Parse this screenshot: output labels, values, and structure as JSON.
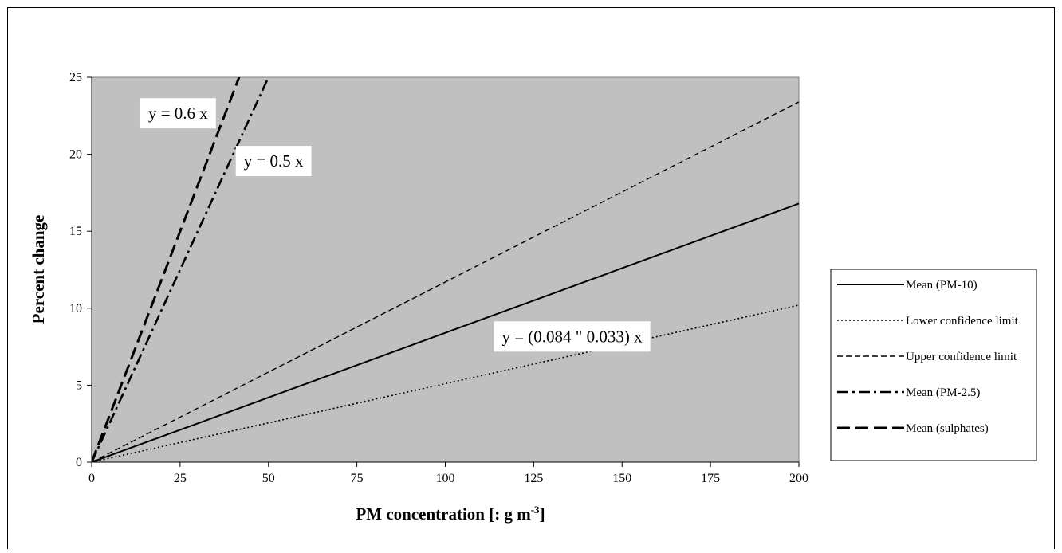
{
  "chart_data": {
    "type": "line",
    "xlabel": "PM concentration [: g m",
    "xlabel_sup": "-3",
    "xlabel_tail": "]",
    "ylabel": "Percent change",
    "xlim": [
      0,
      200
    ],
    "ylim": [
      0,
      25
    ],
    "x_ticks": [
      "0",
      "25",
      "50",
      "75",
      "100",
      "125",
      "150",
      "175",
      "200"
    ],
    "y_ticks": [
      "0",
      "5",
      "10",
      "15",
      "20",
      "25"
    ],
    "grid": false,
    "plot_background": "#c0c0c0",
    "legend_position": "right",
    "series": [
      {
        "name": "Mean (PM-10)",
        "style": "solid",
        "slope": 0.084,
        "x": [
          0,
          200
        ],
        "y": [
          0,
          16.8
        ]
      },
      {
        "name": "Lower confidence limit",
        "style": "dotted",
        "slope": 0.051,
        "x": [
          0,
          200
        ],
        "y": [
          0,
          10.2
        ]
      },
      {
        "name": "Upper confidence limit",
        "style": "dashed",
        "slope": 0.117,
        "x": [
          0,
          200
        ],
        "y": [
          0,
          23.4
        ]
      },
      {
        "name": "Mean (PM-2.5)",
        "style": "dashdot",
        "slope": 0.5,
        "x": [
          0,
          50
        ],
        "y": [
          0,
          25
        ]
      },
      {
        "name": "Mean (sulphates)",
        "style": "longdash",
        "slope": 0.6,
        "x": [
          0,
          41.7
        ],
        "y": [
          0,
          25
        ]
      }
    ],
    "annotations": [
      {
        "text": "y = 0.6 x",
        "x": 16,
        "y": 22.3
      },
      {
        "text": "y = 0.5 x",
        "x": 43,
        "y": 19.2
      },
      {
        "text": "y = (0.084 \" 0.033) x",
        "x": 116,
        "y": 7.8
      }
    ]
  }
}
